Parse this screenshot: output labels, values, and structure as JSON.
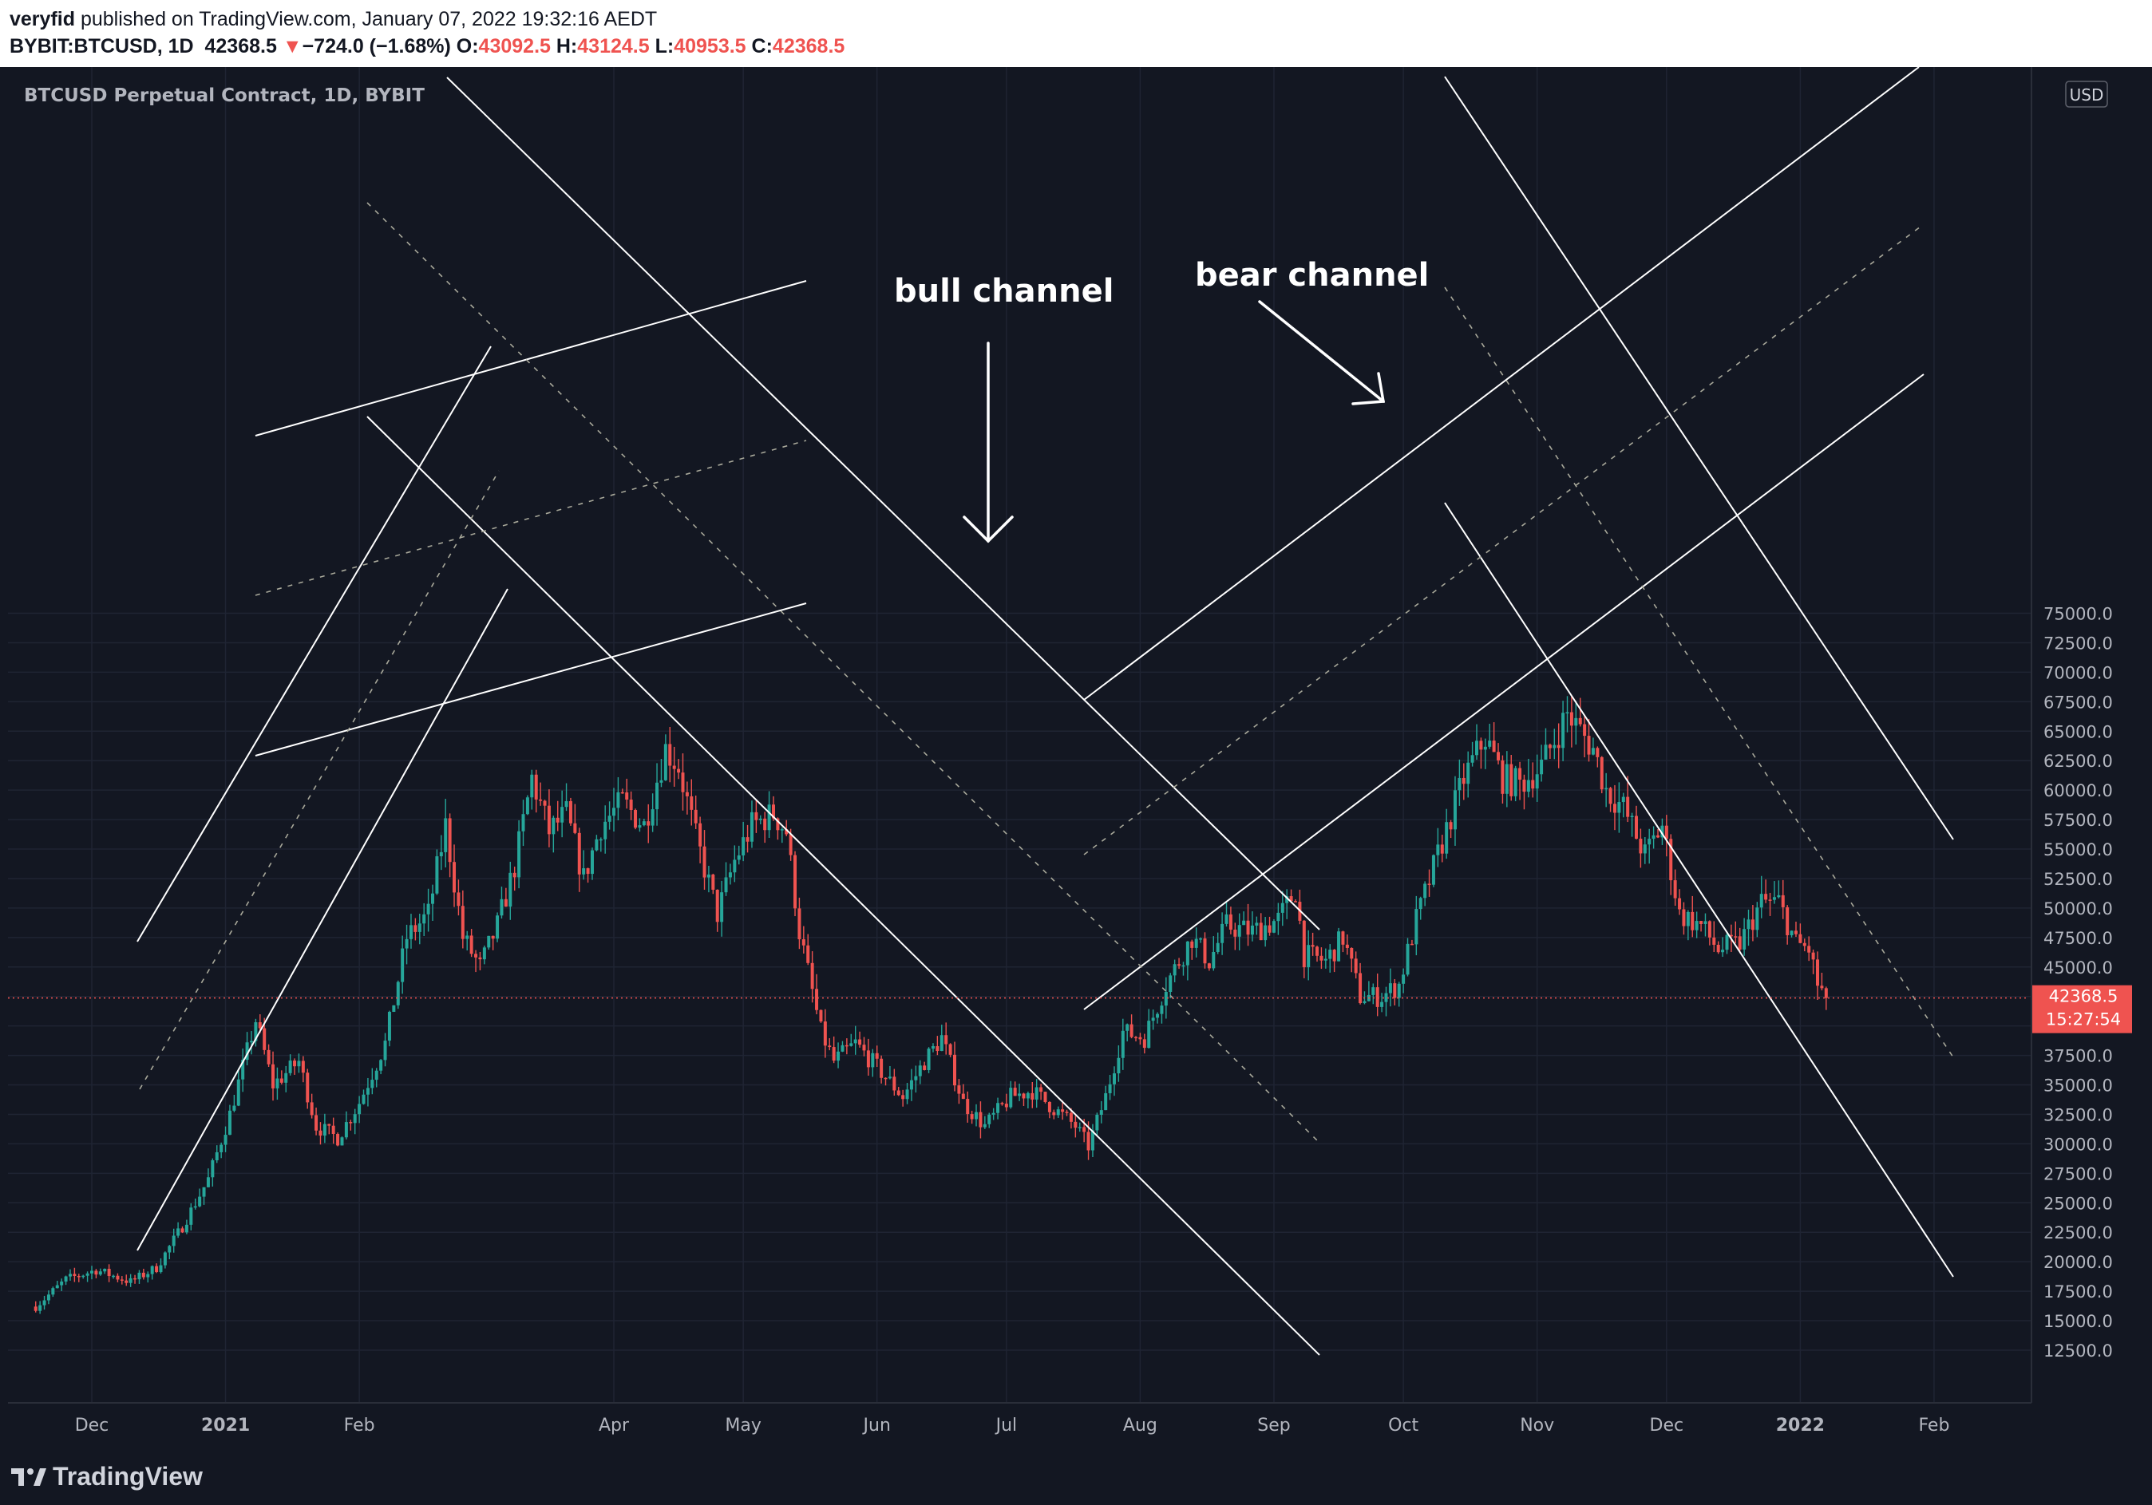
{
  "header": {
    "author": "veryfid",
    "published_text": "published on TradingView.com, January 07, 2022 19:32:16 AEDT",
    "symbol": "BYBIT:BTCUSD, 1D",
    "last_price": "42368.5",
    "change_arrow": "▼",
    "change": "−724.0 (−1.68%)",
    "o_label": "O:",
    "o_value": "43092.5",
    "h_label": "H:",
    "h_value": "43124.5",
    "l_label": "L:",
    "l_value": "40953.5",
    "c_label": "C:",
    "c_value": "42368.5"
  },
  "footer": {
    "brand": "TradingView"
  },
  "colors": {
    "up": "#26a69a",
    "down": "#ef5350",
    "background": "#131722",
    "grid": "#1f2433",
    "annotation": "#ffffff",
    "price_tag": "#ef5350"
  },
  "chart_data": {
    "type": "candlestick",
    "title": "BTCUSD Perpetual Contract, 1D, BYBIT",
    "currency": "USD",
    "annotations": [
      "bull channel",
      "bear channel"
    ],
    "ylim": [
      10000,
      76000
    ],
    "y_ticks": [
      "12500.0",
      "15000.0",
      "17500.0",
      "20000.0",
      "22500.0",
      "25000.0",
      "27500.0",
      "30000.0",
      "32500.0",
      "35000.0",
      "37500.0",
      "40000.0",
      "42500.0",
      "45000.0",
      "47500.0",
      "50000.0",
      "52500.0",
      "55000.0",
      "57500.0",
      "60000.0",
      "62500.0",
      "65000.0",
      "67500.0",
      "70000.0",
      "72500.0",
      "75000.0"
    ],
    "x_ticks": [
      "Dec",
      "2021",
      "Feb",
      "Apr",
      "May",
      "Jun",
      "Jul",
      "Aug",
      "Sep",
      "Oct",
      "Nov",
      "Dec",
      "2022",
      "Feb"
    ],
    "current_price": {
      "value": 42368.5,
      "label": "42368.5",
      "countdown": "15:27:54"
    },
    "close_path": [
      [
        "2020-11-18",
        16200
      ],
      [
        "2020-11-25",
        18500
      ],
      [
        "2020-12-02",
        19300
      ],
      [
        "2020-12-10",
        18300
      ],
      [
        "2020-12-16",
        19500
      ],
      [
        "2020-12-22",
        23000
      ],
      [
        "2020-12-28",
        27000
      ],
      [
        "2021-01-02",
        32500
      ],
      [
        "2021-01-08",
        40500
      ],
      [
        "2021-01-12",
        35000
      ],
      [
        "2021-01-18",
        37000
      ],
      [
        "2021-01-22",
        31500
      ],
      [
        "2021-01-27",
        30500
      ],
      [
        "2021-02-01",
        33500
      ],
      [
        "2021-02-07",
        38500
      ],
      [
        "2021-02-12",
        47500
      ],
      [
        "2021-02-17",
        49500
      ],
      [
        "2021-02-21",
        57000
      ],
      [
        "2021-02-25",
        47500
      ],
      [
        "2021-03-01",
        45000
      ],
      [
        "2021-03-05",
        48500
      ],
      [
        "2021-03-09",
        53500
      ],
      [
        "2021-03-13",
        61000
      ],
      [
        "2021-03-17",
        56500
      ],
      [
        "2021-03-21",
        58000
      ],
      [
        "2021-03-25",
        52500
      ],
      [
        "2021-03-29",
        57000
      ],
      [
        "2021-04-03",
        59000
      ],
      [
        "2021-04-08",
        57000
      ],
      [
        "2021-04-13",
        63500
      ],
      [
        "2021-04-16",
        62000
      ],
      [
        "2021-04-20",
        56000
      ],
      [
        "2021-04-25",
        49500
      ],
      [
        "2021-04-29",
        54000
      ],
      [
        "2021-05-03",
        57000
      ],
      [
        "2021-05-08",
        58000
      ],
      [
        "2021-05-11",
        56500
      ],
      [
        "2021-05-14",
        48000
      ],
      [
        "2021-05-19",
        39500
      ],
      [
        "2021-05-22",
        37000
      ],
      [
        "2021-05-27",
        38500
      ],
      [
        "2021-06-01",
        36500
      ],
      [
        "2021-06-07",
        34000
      ],
      [
        "2021-06-12",
        37000
      ],
      [
        "2021-06-16",
        39000
      ],
      [
        "2021-06-21",
        33500
      ],
      [
        "2021-06-26",
        31500
      ],
      [
        "2021-07-02",
        34000
      ],
      [
        "2021-07-07",
        34500
      ],
      [
        "2021-07-12",
        33000
      ],
      [
        "2021-07-17",
        31500
      ],
      [
        "2021-07-20",
        29800
      ],
      [
        "2021-07-24",
        34000
      ],
      [
        "2021-07-28",
        39500
      ],
      [
        "2021-08-02",
        39000
      ],
      [
        "2021-08-07",
        43500
      ],
      [
        "2021-08-13",
        47500
      ],
      [
        "2021-08-17",
        45500
      ],
      [
        "2021-08-21",
        48500
      ],
      [
        "2021-08-27",
        48000
      ],
      [
        "2021-09-02",
        49000
      ],
      [
        "2021-09-06",
        51500
      ],
      [
        "2021-09-08",
        46000
      ],
      [
        "2021-09-13",
        45500
      ],
      [
        "2021-09-17",
        47500
      ],
      [
        "2021-09-21",
        42500
      ],
      [
        "2021-09-26",
        42500
      ],
      [
        "2021-09-30",
        43500
      ],
      [
        "2021-10-04",
        49000
      ],
      [
        "2021-10-09",
        54500
      ],
      [
        "2021-10-15",
        61000
      ],
      [
        "2021-10-20",
        64500
      ],
      [
        "2021-10-24",
        61000
      ],
      [
        "2021-10-28",
        60500
      ],
      [
        "2021-11-02",
        62000
      ],
      [
        "2021-11-08",
        66500
      ],
      [
        "2021-11-10",
        65500
      ],
      [
        "2021-11-14",
        63500
      ],
      [
        "2021-11-17",
        60000
      ],
      [
        "2021-11-21",
        58500
      ],
      [
        "2021-11-26",
        54500
      ],
      [
        "2021-11-30",
        57000
      ],
      [
        "2021-12-04",
        49500
      ],
      [
        "2021-12-09",
        48500
      ],
      [
        "2021-12-13",
        46500
      ],
      [
        "2021-12-18",
        47000
      ],
      [
        "2021-12-23",
        50500
      ],
      [
        "2021-12-27",
        50500
      ],
      [
        "2021-12-31",
        47000
      ],
      [
        "2022-01-03",
        46500
      ],
      [
        "2022-01-05",
        43500
      ],
      [
        "2022-01-07",
        42368.5
      ]
    ]
  }
}
